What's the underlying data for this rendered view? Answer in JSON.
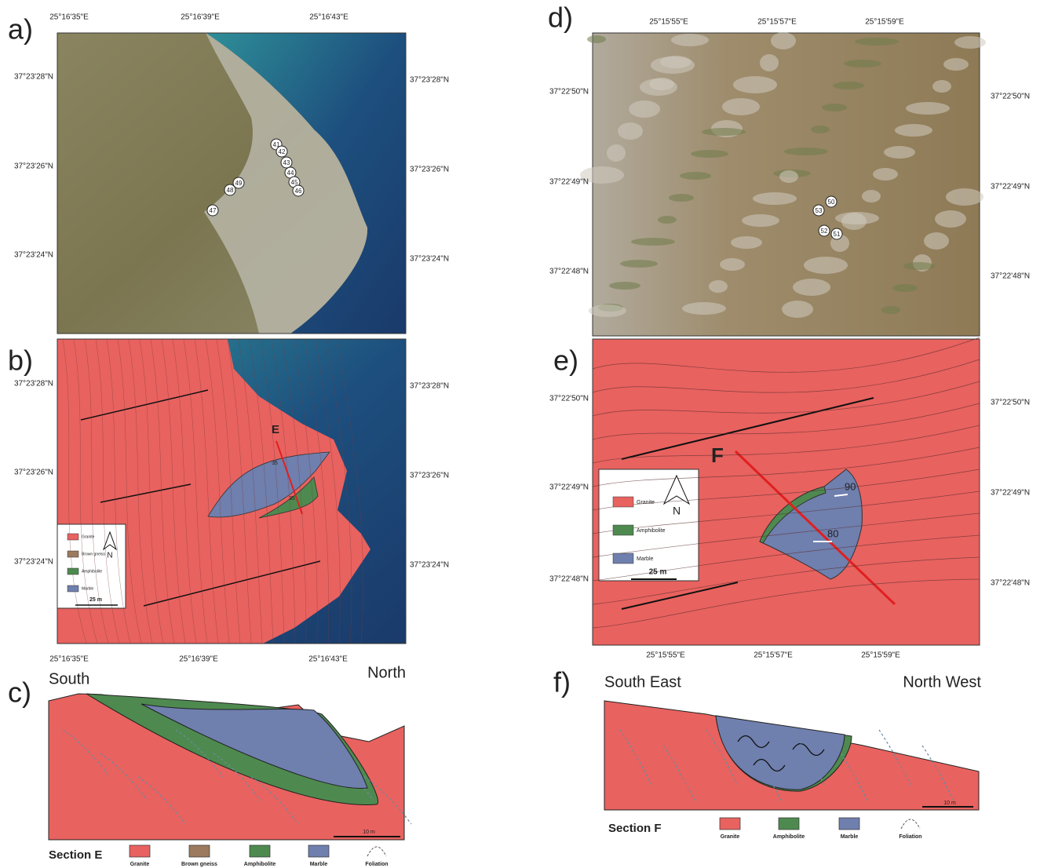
{
  "panels": [
    {
      "label": "a)",
      "lon_ticks": [
        "25°16'35\"E",
        "25°16'39\"E",
        "25°16'43\"E"
      ],
      "lat_ticks": [
        "37°23'28\"N",
        "37°23'26\"N",
        "37°23'24\"N"
      ],
      "samples": [
        41,
        42,
        43,
        44,
        45,
        46,
        47,
        48,
        49
      ]
    },
    {
      "label": "b)",
      "lon_ticks": [
        "25°16'35\"E",
        "25°16'39\"E",
        "25°16'43\"E"
      ],
      "lat_ticks": [
        "37°23'28\"N",
        "37°23'26\"N",
        "37°23'24\"N"
      ],
      "section_marker": "E",
      "dips": [
        35,
        35
      ],
      "north": "N",
      "scale": "25 m",
      "legend": [
        "Granite",
        "Brown gneiss",
        "Amphibolite",
        "Marble"
      ]
    },
    {
      "label": "c)",
      "left": "South",
      "right": "North",
      "scale": "10 m",
      "title": "Section E",
      "legend": [
        "Granite",
        "Brown gneiss",
        "Amphibolite",
        "Marble",
        "Foliation"
      ]
    },
    {
      "label": "d)",
      "lon_ticks": [
        "25°15'55\"E",
        "25°15'57\"E",
        "25°15'59\"E"
      ],
      "lat_ticks": [
        "37°22'50\"N",
        "37°22'49\"N",
        "37°22'48\"N"
      ],
      "samples": [
        50,
        51,
        52,
        53
      ]
    },
    {
      "label": "e)",
      "lon_ticks": [
        "25°15'55\"E",
        "25°15'57\"E",
        "25°15'59\"E"
      ],
      "lat_ticks": [
        "37°22'50\"N",
        "37°22'49\"N",
        "37°22'48\"N"
      ],
      "section_marker": "F",
      "dips": [
        90,
        80
      ],
      "north": "N",
      "scale": "25 m",
      "legend": [
        "Granite",
        "Amphibolite",
        "Marble"
      ]
    },
    {
      "label": "f)",
      "left": "South East",
      "right": "North West",
      "scale": "10 m",
      "title": "Section F",
      "legend": [
        "Granite",
        "Amphibolite",
        "Marble",
        "Foliation"
      ]
    }
  ]
}
